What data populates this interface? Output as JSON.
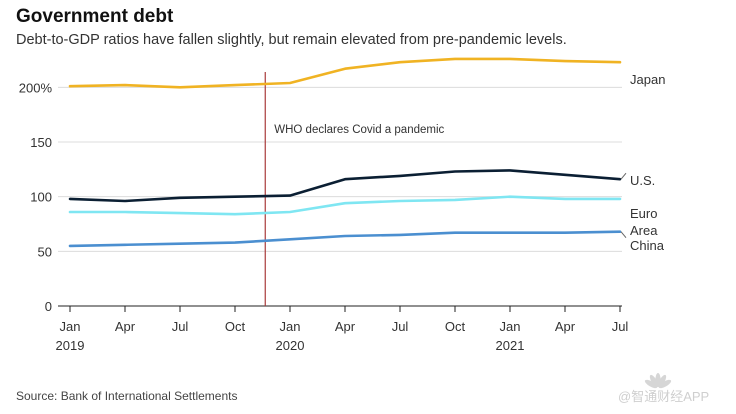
{
  "header": {
    "title": "Government debt",
    "subtitle": "Debt-to-GDP ratios have fallen slightly, but remain elevated from pre-pandemic levels."
  },
  "footer": {
    "source": "Source: Bank of International Settlements",
    "watermark": "@智通财经APP"
  },
  "chart_data": {
    "type": "line",
    "title": "Government debt",
    "subtitle": "Debt-to-GDP ratios have fallen slightly, but remain elevated from pre-pandemic levels.",
    "xlabel": "",
    "ylabel": "",
    "x": [
      "Jan 2019",
      "Apr 2019",
      "Jul 2019",
      "Oct 2019",
      "Jan 2020",
      "Apr 2020",
      "Jul 2020",
      "Oct 2020",
      "Jan 2021",
      "Apr 2021",
      "Jul 2021"
    ],
    "x_tick_labels": [
      "Jan",
      "Apr",
      "Jul",
      "Oct",
      "Jan",
      "Apr",
      "Jul",
      "Oct",
      "Jan",
      "Apr",
      "Jul"
    ],
    "x_year_labels": [
      {
        "label": "2019",
        "at": 0
      },
      {
        "label": "2020",
        "at": 4
      },
      {
        "label": "2021",
        "at": 8
      }
    ],
    "y_ticks": [
      0,
      50,
      100,
      150,
      200
    ],
    "y_tick_labels": [
      "0",
      "50",
      "100",
      "150",
      "200%"
    ],
    "ylim": [
      0,
      225
    ],
    "grid": true,
    "legend": "direct labels at right end of lines",
    "series": [
      {
        "name": "Japan",
        "color": "#F0B323",
        "values": [
          201,
          202,
          200,
          202,
          204,
          217,
          223,
          226,
          226,
          224,
          223
        ]
      },
      {
        "name": "U.S.",
        "color": "#0B1F33",
        "values": [
          98,
          96,
          99,
          100,
          101,
          116,
          119,
          123,
          124,
          120,
          116
        ]
      },
      {
        "name": "Euro Area",
        "color": "#7FE6F2",
        "values": [
          86,
          86,
          85,
          84,
          86,
          94,
          96,
          97,
          100,
          98,
          98
        ]
      },
      {
        "name": "China",
        "color": "#4B8FD0",
        "values": [
          55,
          56,
          57,
          58,
          61,
          64,
          65,
          67,
          67,
          67,
          68
        ]
      }
    ],
    "annotations": [
      {
        "label": "WHO declares Covid a pandemic",
        "x": 3.55,
        "color": "#A93A3A"
      }
    ]
  }
}
